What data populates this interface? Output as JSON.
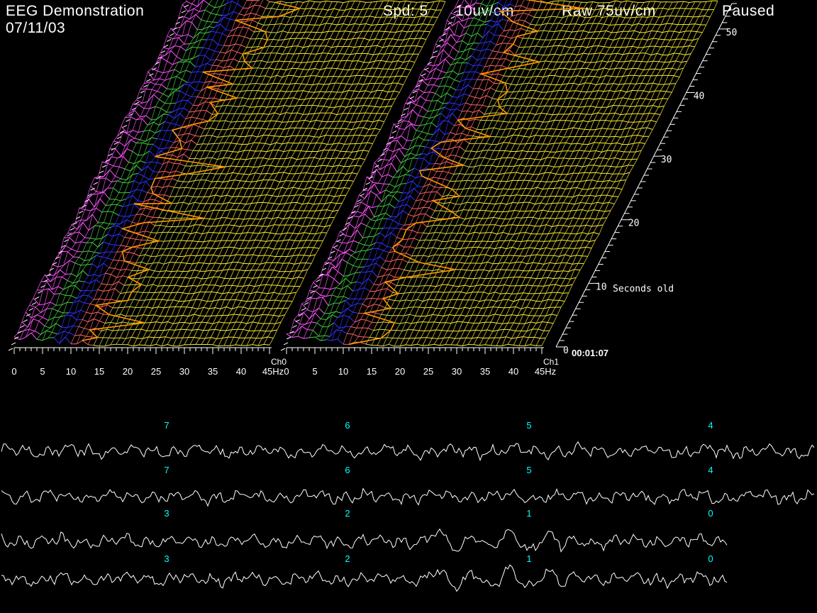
{
  "header": {
    "title": "EEG Demonstration",
    "date": "07/11/03",
    "speed": "Spd: 5",
    "scale": "10uv/cm",
    "raw": "Raw 75uv/cm",
    "state": "Paused"
  },
  "chart_data": [
    {
      "type": "area",
      "panel": "spectral-array",
      "channels": [
        {
          "name": "Ch0"
        },
        {
          "name": "Ch1"
        }
      ],
      "x_ticks": [
        "0",
        "5",
        "10",
        "15",
        "20",
        "25",
        "30",
        "35",
        "40"
      ],
      "x_unit": "45Hz",
      "xlim": [
        0,
        45
      ],
      "z_ticks": [
        "0",
        "10",
        "20",
        "30",
        "40",
        "50"
      ],
      "z_label": "Seconds old",
      "z_range": [
        0,
        54
      ],
      "time_readout": "00:01:07",
      "band_colors": [
        {
          "from_hz": 0,
          "to_hz": 4,
          "color": "#ff55ff"
        },
        {
          "from_hz": 4,
          "to_hz": 7,
          "color": "#44cc44"
        },
        {
          "from_hz": 7,
          "to_hz": 10,
          "color": "#3333ff"
        },
        {
          "from_hz": 10,
          "to_hz": 14,
          "color": "#ff6666"
        },
        {
          "from_hz": 14,
          "to_hz": 20,
          "color": "#dddd44"
        },
        {
          "from_hz": 20,
          "to_hz": 45,
          "color": "#ffee33"
        }
      ],
      "edge_marker_color": "#ff9900"
    },
    {
      "type": "line",
      "panel": "raw-traces",
      "traces": [
        {
          "name": "Ch0",
          "second_labels": [
            "7",
            "6",
            "5",
            "4"
          ]
        },
        {
          "name": "Ch1",
          "second_labels": [
            "7",
            "6",
            "5",
            "4"
          ]
        },
        {
          "name": "Ch0",
          "second_labels": [
            "3",
            "2",
            "1",
            "0"
          ]
        },
        {
          "name": "Ch1",
          "second_labels": [
            "3",
            "2",
            "1",
            "0"
          ]
        }
      ],
      "trace_color": "#ffffff",
      "label_color": "#00ffff"
    }
  ]
}
